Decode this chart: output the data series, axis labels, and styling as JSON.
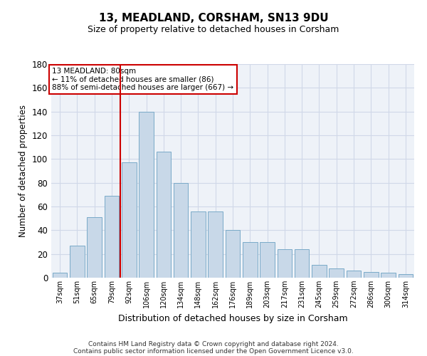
{
  "title_line1": "13, MEADLAND, CORSHAM, SN13 9DU",
  "title_line2": "Size of property relative to detached houses in Corsham",
  "xlabel": "Distribution of detached houses by size in Corsham",
  "ylabel": "Number of detached properties",
  "categories": [
    "37sqm",
    "51sqm",
    "65sqm",
    "79sqm",
    "92sqm",
    "106sqm",
    "120sqm",
    "134sqm",
    "148sqm",
    "162sqm",
    "176sqm",
    "189sqm",
    "203sqm",
    "217sqm",
    "231sqm",
    "245sqm",
    "259sqm",
    "272sqm",
    "286sqm",
    "300sqm",
    "314sqm"
  ],
  "values": [
    4,
    27,
    51,
    69,
    97,
    140,
    106,
    80,
    56,
    56,
    40,
    30,
    30,
    24,
    24,
    11,
    8,
    6,
    5,
    4,
    3
  ],
  "bar_color": "#c8d8e8",
  "bar_edge_color": "#7aaac8",
  "grid_color": "#d0d8e8",
  "background_color": "#eef2f8",
  "vline_color": "#cc0000",
  "vline_x_index": 3.5,
  "annotation_text": "13 MEADLAND: 80sqm\n← 11% of detached houses are smaller (86)\n88% of semi-detached houses are larger (667) →",
  "annotation_box_color": "#ffffff",
  "annotation_box_edge": "#cc0000",
  "footnote_line1": "Contains HM Land Registry data © Crown copyright and database right 2024.",
  "footnote_line2": "Contains public sector information licensed under the Open Government Licence v3.0.",
  "ylim": [
    0,
    180
  ],
  "yticks": [
    0,
    20,
    40,
    60,
    80,
    100,
    120,
    140,
    160,
    180
  ]
}
